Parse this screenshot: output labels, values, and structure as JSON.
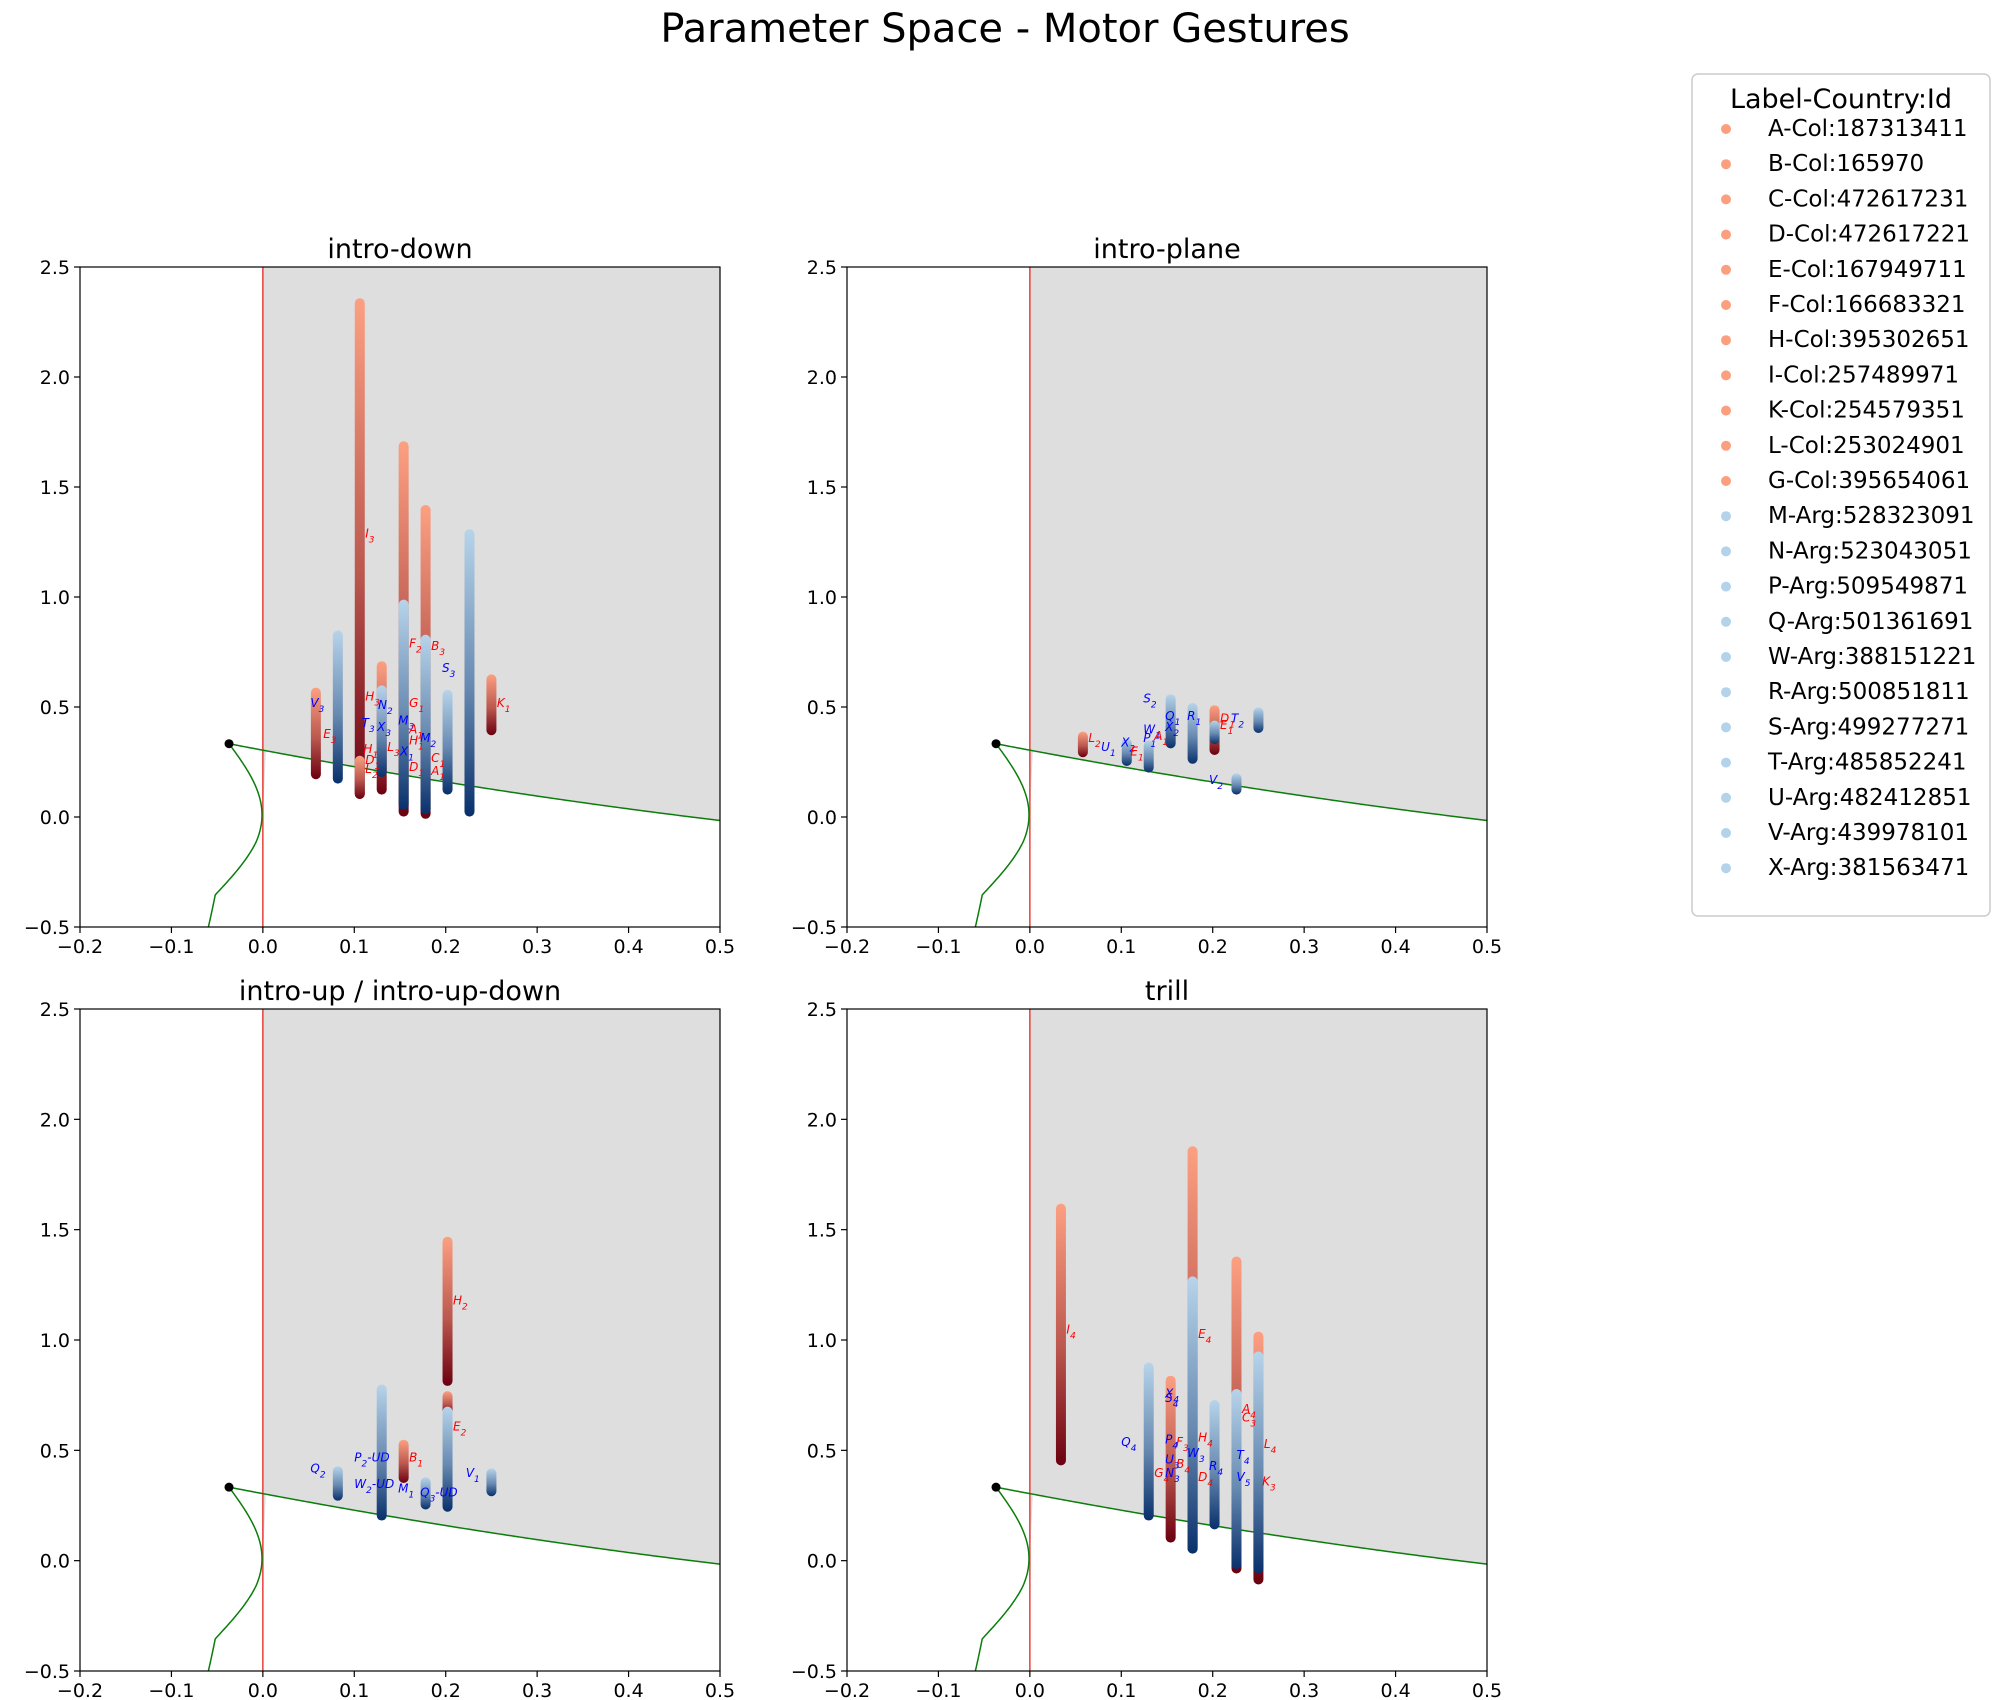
{
  "suptitle": "Parameter Space - Motor Gestures",
  "legend": {
    "title": "Label-Country:Id",
    "entries": [
      {
        "label": "A-Col:187313411",
        "color": "#fc9f7f"
      },
      {
        "label": "B-Col:165970",
        "color": "#fc9f7f"
      },
      {
        "label": "C-Col:472617231",
        "color": "#fc9f7f"
      },
      {
        "label": "D-Col:472617221",
        "color": "#fc9f7f"
      },
      {
        "label": "E-Col:167949711",
        "color": "#fc9f7f"
      },
      {
        "label": "F-Col:166683321",
        "color": "#fc9f7f"
      },
      {
        "label": "H-Col:395302651",
        "color": "#fc9f7f"
      },
      {
        "label": "I-Col:257489971",
        "color": "#fc9f7f"
      },
      {
        "label": "K-Col:254579351",
        "color": "#fc9f7f"
      },
      {
        "label": "L-Col:253024901",
        "color": "#fc9f7f"
      },
      {
        "label": "G-Col:395654061",
        "color": "#fc9f7f"
      },
      {
        "label": "M-Arg:528323091",
        "color": "#b2d3ea"
      },
      {
        "label": "N-Arg:523043051",
        "color": "#b2d3ea"
      },
      {
        "label": "P-Arg:509549871",
        "color": "#b2d3ea"
      },
      {
        "label": "Q-Arg:501361691",
        "color": "#b2d3ea"
      },
      {
        "label": "W-Arg:388151221",
        "color": "#b2d3ea"
      },
      {
        "label": "R-Arg:500851811",
        "color": "#b2d3ea"
      },
      {
        "label": "S-Arg:499277271",
        "color": "#b2d3ea"
      },
      {
        "label": "T-Arg:485852241",
        "color": "#b2d3ea"
      },
      {
        "label": "U-Arg:482412851",
        "color": "#b2d3ea"
      },
      {
        "label": "V-Arg:439978101",
        "color": "#b2d3ea"
      },
      {
        "label": "X-Arg:381563471",
        "color": "#b2d3ea"
      }
    ]
  },
  "colors": {
    "region_fill": "#dedede",
    "vline": "#e8403a",
    "curve": "#0a7d0a",
    "col_light": "#fca082",
    "col_dark": "#6b0010",
    "arg_light": "#b7d4ea",
    "arg_dark": "#08306b",
    "col_text": "#ff0000",
    "arg_text": "#0000ff"
  },
  "chart_data": [
    {
      "type": "scatter",
      "title": "intro-down",
      "xlim": [
        -0.2,
        0.5
      ],
      "ylim": [
        -0.5,
        2.5
      ],
      "xticks": [
        "−0.2",
        "−0.1",
        "0.0",
        "0.1",
        "0.2",
        "0.3",
        "0.4",
        "0.5"
      ],
      "yticks": [
        "−0.5",
        "0.0",
        "0.5",
        "1.0",
        "1.5",
        "2.0",
        "2.5"
      ],
      "bars": [
        {
          "x": 0.058,
          "y0": 0.19,
          "y1": 0.57,
          "group": "col"
        },
        {
          "x": 0.082,
          "y0": 0.17,
          "y1": 0.83,
          "group": "arg"
        },
        {
          "x": 0.106,
          "y0": 0.1,
          "y1": 2.34,
          "group": "col"
        },
        {
          "x": 0.106,
          "y0": 0.1,
          "y1": 0.26,
          "group": "col"
        },
        {
          "x": 0.13,
          "y0": 0.12,
          "y1": 0.69,
          "group": "col"
        },
        {
          "x": 0.13,
          "y0": 0.2,
          "y1": 0.58,
          "group": "arg"
        },
        {
          "x": 0.154,
          "y0": 0.02,
          "y1": 1.69,
          "group": "col"
        },
        {
          "x": 0.154,
          "y0": 0.05,
          "y1": 0.97,
          "group": "arg"
        },
        {
          "x": 0.178,
          "y0": 0.01,
          "y1": 1.4,
          "group": "col"
        },
        {
          "x": 0.178,
          "y0": 0.03,
          "y1": 0.81,
          "group": "arg"
        },
        {
          "x": 0.202,
          "y0": 0.12,
          "y1": 0.56,
          "group": "arg"
        },
        {
          "x": 0.226,
          "y0": 0.02,
          "y1": 1.29,
          "group": "arg"
        },
        {
          "x": 0.25,
          "y0": 0.39,
          "y1": 0.63,
          "group": "col"
        }
      ],
      "labels": [
        {
          "x": 0.112,
          "y": 1.27,
          "t": "I",
          "s": "3",
          "group": "col"
        },
        {
          "x": 0.16,
          "y": 0.77,
          "t": "F",
          "s": "2",
          "group": "col"
        },
        {
          "x": 0.184,
          "y": 0.76,
          "t": "B",
          "s": "3",
          "group": "col"
        },
        {
          "x": 0.196,
          "y": 0.66,
          "t": "S",
          "s": "3",
          "group": "arg"
        },
        {
          "x": 0.256,
          "y": 0.5,
          "t": "K",
          "s": "1",
          "group": "col"
        },
        {
          "x": 0.052,
          "y": 0.5,
          "t": "V",
          "s": "3",
          "group": "arg"
        },
        {
          "x": 0.066,
          "y": 0.36,
          "t": "E",
          "s": "3",
          "group": "col"
        },
        {
          "x": 0.112,
          "y": 0.53,
          "t": "H",
          "s": "3",
          "group": "col"
        },
        {
          "x": 0.126,
          "y": 0.49,
          "t": "N",
          "s": "2",
          "group": "arg"
        },
        {
          "x": 0.16,
          "y": 0.5,
          "t": "G",
          "s": "1",
          "group": "col"
        },
        {
          "x": 0.108,
          "y": 0.41,
          "t": "T",
          "s": "3",
          "group": "arg"
        },
        {
          "x": 0.125,
          "y": 0.39,
          "t": "X",
          "s": "3",
          "group": "arg"
        },
        {
          "x": 0.148,
          "y": 0.42,
          "t": "M",
          "s": "3",
          "group": "arg"
        },
        {
          "x": 0.16,
          "y": 0.38,
          "t": "A",
          "s": "1",
          "group": "col"
        },
        {
          "x": 0.172,
          "y": 0.34,
          "t": "M",
          "s": "2",
          "group": "arg"
        },
        {
          "x": 0.16,
          "y": 0.33,
          "t": "H",
          "s": "1",
          "group": "col"
        },
        {
          "x": 0.11,
          "y": 0.29,
          "t": "H",
          "s": "1",
          "group": "col"
        },
        {
          "x": 0.136,
          "y": 0.3,
          "t": "L",
          "s": "3",
          "group": "col"
        },
        {
          "x": 0.15,
          "y": 0.28,
          "t": "X",
          "s": "1",
          "group": "arg"
        },
        {
          "x": 0.112,
          "y": 0.24,
          "t": "D",
          "s": "1",
          "group": "col"
        },
        {
          "x": 0.112,
          "y": 0.2,
          "t": "L",
          "s": "2",
          "group": "col"
        },
        {
          "x": 0.16,
          "y": 0.21,
          "t": "D",
          "s": "1",
          "group": "col"
        },
        {
          "x": 0.184,
          "y": 0.25,
          "t": "C",
          "s": "1",
          "group": "col"
        },
        {
          "x": 0.184,
          "y": 0.19,
          "t": "A",
          "s": "1",
          "group": "col"
        }
      ]
    },
    {
      "type": "scatter",
      "title": "intro-plane",
      "xlim": [
        -0.2,
        0.5
      ],
      "ylim": [
        -0.5,
        2.5
      ],
      "xticks": [
        "−0.2",
        "−0.1",
        "0.0",
        "0.1",
        "0.2",
        "0.3",
        "0.4",
        "0.5"
      ],
      "yticks": [
        "−0.5",
        "0.0",
        "0.5",
        "1.0",
        "1.5",
        "2.0",
        "2.5"
      ],
      "bars": [
        {
          "x": 0.058,
          "y0": 0.29,
          "y1": 0.37,
          "group": "col"
        },
        {
          "x": 0.106,
          "y0": 0.25,
          "y1": 0.34,
          "group": "arg"
        },
        {
          "x": 0.13,
          "y0": 0.22,
          "y1": 0.33,
          "group": "arg"
        },
        {
          "x": 0.154,
          "y0": 0.33,
          "y1": 0.54,
          "group": "arg"
        },
        {
          "x": 0.178,
          "y0": 0.26,
          "y1": 0.5,
          "group": "arg"
        },
        {
          "x": 0.202,
          "y0": 0.3,
          "y1": 0.49,
          "group": "col"
        },
        {
          "x": 0.202,
          "y0": 0.35,
          "y1": 0.42,
          "group": "arg"
        },
        {
          "x": 0.226,
          "y0": 0.12,
          "y1": 0.18,
          "group": "arg"
        },
        {
          "x": 0.25,
          "y0": 0.4,
          "y1": 0.48,
          "group": "arg"
        }
      ],
      "labels": [
        {
          "x": 0.124,
          "y": 0.52,
          "t": "S",
          "s": "2",
          "group": "arg"
        },
        {
          "x": 0.064,
          "y": 0.34,
          "t": "L",
          "s": "2",
          "group": "col"
        },
        {
          "x": 0.078,
          "y": 0.3,
          "t": "U",
          "s": "1",
          "group": "arg"
        },
        {
          "x": 0.1,
          "y": 0.32,
          "t": "X",
          "s": "2",
          "group": "arg"
        },
        {
          "x": 0.11,
          "y": 0.28,
          "t": "E",
          "s": "1",
          "group": "col"
        },
        {
          "x": 0.124,
          "y": 0.38,
          "t": "W",
          "s": "1",
          "group": "arg"
        },
        {
          "x": 0.124,
          "y": 0.34,
          "t": "P",
          "s": "1",
          "group": "arg"
        },
        {
          "x": 0.136,
          "y": 0.35,
          "t": "A",
          "s": "1",
          "group": "col"
        },
        {
          "x": 0.148,
          "y": 0.44,
          "t": "Q",
          "s": "1",
          "group": "arg"
        },
        {
          "x": 0.148,
          "y": 0.39,
          "t": "X",
          "s": "2",
          "group": "arg"
        },
        {
          "x": 0.172,
          "y": 0.44,
          "t": "R",
          "s": "1",
          "group": "arg"
        },
        {
          "x": 0.208,
          "y": 0.43,
          "t": "D",
          "s": "1",
          "group": "col"
        },
        {
          "x": 0.208,
          "y": 0.4,
          "t": "E",
          "s": "1",
          "group": "col"
        },
        {
          "x": 0.22,
          "y": 0.43,
          "t": "T",
          "s": "2",
          "group": "arg"
        },
        {
          "x": 0.196,
          "y": 0.15,
          "t": "V",
          "s": "2",
          "group": "arg"
        }
      ]
    },
    {
      "type": "scatter",
      "title": "intro-up / intro-up-down",
      "xlim": [
        -0.2,
        0.5
      ],
      "ylim": [
        -0.5,
        2.5
      ],
      "xticks": [
        "−0.2",
        "−0.1",
        "0.0",
        "0.1",
        "0.2",
        "0.3",
        "0.4",
        "0.5"
      ],
      "yticks": [
        "−0.5",
        "0.0",
        "0.5",
        "1.0",
        "1.5",
        "2.0",
        "2.5"
      ],
      "bars": [
        {
          "x": 0.082,
          "y0": 0.29,
          "y1": 0.41,
          "group": "arg"
        },
        {
          "x": 0.13,
          "y0": 0.2,
          "y1": 0.78,
          "group": "arg"
        },
        {
          "x": 0.154,
          "y0": 0.37,
          "y1": 0.53,
          "group": "col"
        },
        {
          "x": 0.178,
          "y0": 0.25,
          "y1": 0.36,
          "group": "arg"
        },
        {
          "x": 0.202,
          "y0": 0.81,
          "y1": 1.45,
          "group": "col"
        },
        {
          "x": 0.202,
          "y0": 0.68,
          "y1": 0.75,
          "group": "col"
        },
        {
          "x": 0.202,
          "y0": 0.24,
          "y1": 0.68,
          "group": "arg"
        },
        {
          "x": 0.25,
          "y0": 0.31,
          "y1": 0.4,
          "group": "arg"
        }
      ],
      "labels": [
        {
          "x": 0.208,
          "y": 1.16,
          "t": "H",
          "s": "2",
          "group": "col"
        },
        {
          "x": 0.208,
          "y": 0.59,
          "t": "E",
          "s": "2",
          "group": "col"
        },
        {
          "x": 0.16,
          "y": 0.45,
          "t": "B",
          "s": "1",
          "group": "col"
        },
        {
          "x": 0.1,
          "y": 0.45,
          "t": "P",
          "s": "2",
          "suffix": "-UD",
          "group": "arg"
        },
        {
          "x": 0.052,
          "y": 0.4,
          "t": "Q",
          "s": "2",
          "group": "arg"
        },
        {
          "x": 0.1,
          "y": 0.33,
          "t": "W",
          "s": "2",
          "suffix": "-UD",
          "group": "arg"
        },
        {
          "x": 0.148,
          "y": 0.31,
          "t": "M",
          "s": "1",
          "group": "arg"
        },
        {
          "x": 0.172,
          "y": 0.29,
          "t": "Q",
          "s": "3",
          "suffix": "-UD",
          "group": "arg"
        },
        {
          "x": 0.222,
          "y": 0.38,
          "t": "V",
          "s": "1",
          "group": "arg"
        }
      ]
    },
    {
      "type": "scatter",
      "title": "trill",
      "xlim": [
        -0.2,
        0.5
      ],
      "ylim": [
        -0.5,
        2.5
      ],
      "xticks": [
        "−0.2",
        "−0.1",
        "0.0",
        "0.1",
        "0.2",
        "0.3",
        "0.4",
        "0.5"
      ],
      "yticks": [
        "−0.5",
        "0.0",
        "0.5",
        "1.0",
        "1.5",
        "2.0",
        "2.5"
      ],
      "bars": [
        {
          "x": 0.034,
          "y0": 0.45,
          "y1": 1.6,
          "group": "col"
        },
        {
          "x": 0.13,
          "y0": 0.2,
          "y1": 0.88,
          "group": "arg"
        },
        {
          "x": 0.154,
          "y0": 0.1,
          "y1": 0.82,
          "group": "col"
        },
        {
          "x": 0.178,
          "y0": 0.05,
          "y1": 1.86,
          "group": "col"
        },
        {
          "x": 0.178,
          "y0": 0.05,
          "y1": 1.27,
          "group": "arg"
        },
        {
          "x": 0.202,
          "y0": 0.16,
          "y1": 0.71,
          "group": "arg"
        },
        {
          "x": 0.226,
          "y0": -0.04,
          "y1": 1.36,
          "group": "col"
        },
        {
          "x": 0.226,
          "y0": -0.02,
          "y1": 0.76,
          "group": "arg"
        },
        {
          "x": 0.25,
          "y0": -0.09,
          "y1": 1.02,
          "group": "col"
        },
        {
          "x": 0.25,
          "y0": -0.04,
          "y1": 0.93,
          "group": "arg"
        }
      ],
      "labels": [
        {
          "x": 0.04,
          "y": 1.03,
          "t": "I",
          "s": "4",
          "group": "col"
        },
        {
          "x": 0.184,
          "y": 1.01,
          "t": "E",
          "s": "4",
          "group": "col"
        },
        {
          "x": 0.148,
          "y": 0.74,
          "t": "X",
          "s": "4",
          "group": "arg"
        },
        {
          "x": 0.148,
          "y": 0.72,
          "t": "S",
          "s": "4",
          "group": "arg"
        },
        {
          "x": 0.232,
          "y": 0.67,
          "t": "A",
          "s": "4",
          "group": "col"
        },
        {
          "x": 0.232,
          "y": 0.63,
          "t": "C",
          "s": "3",
          "group": "col"
        },
        {
          "x": 0.1,
          "y": 0.52,
          "t": "Q",
          "s": "4",
          "group": "arg"
        },
        {
          "x": 0.148,
          "y": 0.53,
          "t": "P",
          "s": "4",
          "group": "arg"
        },
        {
          "x": 0.16,
          "y": 0.52,
          "t": "F",
          "s": "3",
          "group": "col"
        },
        {
          "x": 0.184,
          "y": 0.54,
          "t": "H",
          "s": "4",
          "group": "col"
        },
        {
          "x": 0.256,
          "y": 0.51,
          "t": "L",
          "s": "4",
          "group": "col"
        },
        {
          "x": 0.172,
          "y": 0.47,
          "t": "W",
          "s": "3",
          "group": "arg"
        },
        {
          "x": 0.226,
          "y": 0.46,
          "t": "T",
          "s": "4",
          "group": "arg"
        },
        {
          "x": 0.148,
          "y": 0.44,
          "t": "U",
          "s": "3",
          "group": "arg"
        },
        {
          "x": 0.16,
          "y": 0.42,
          "t": "B",
          "s": "4",
          "group": "col"
        },
        {
          "x": 0.196,
          "y": 0.41,
          "t": "R",
          "s": "4",
          "group": "arg"
        },
        {
          "x": 0.136,
          "y": 0.38,
          "t": "G",
          "s": "4",
          "group": "col"
        },
        {
          "x": 0.148,
          "y": 0.38,
          "t": "N",
          "s": "3",
          "group": "arg"
        },
        {
          "x": 0.184,
          "y": 0.36,
          "t": "D",
          "s": "4",
          "group": "col"
        },
        {
          "x": 0.226,
          "y": 0.36,
          "t": "V",
          "s": "5",
          "group": "arg"
        },
        {
          "x": 0.254,
          "y": 0.34,
          "t": "K",
          "s": "3",
          "group": "col"
        }
      ]
    }
  ]
}
